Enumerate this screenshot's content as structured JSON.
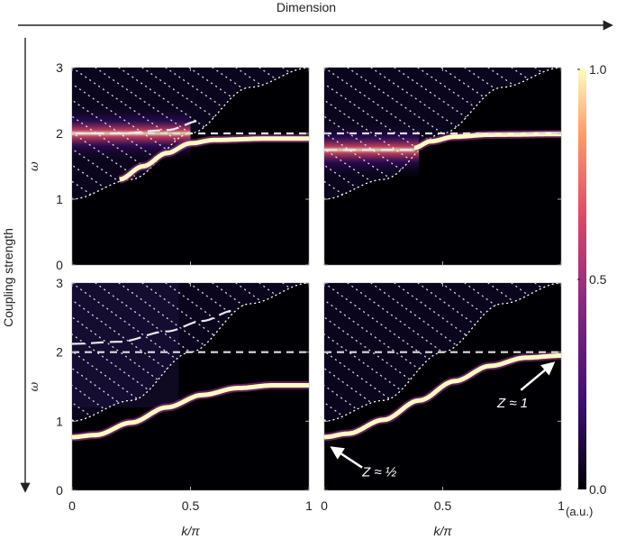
{
  "chart_data": {
    "type": "heatmap",
    "title": "",
    "top_arrow_label": "Dimension",
    "left_arrow_label": "Coupling strength",
    "xlabel": "k/π",
    "ylabel": "ω",
    "xlim": [
      0,
      1
    ],
    "ylim": [
      0,
      3
    ],
    "x_ticks": [
      "0",
      "0.5",
      "1"
    ],
    "y_ticks": [
      "0",
      "1",
      "2",
      "3"
    ],
    "colorbar": {
      "ticks": [
        "0.0",
        "0.5",
        "1.0"
      ],
      "range": [
        0,
        1
      ],
      "unit_label": "(a.u.)",
      "colormap": [
        "#000004",
        "#3b0f70",
        "#8c2981",
        "#de4968",
        "#fe9f6d",
        "#fcfdbf"
      ]
    },
    "continuum_lower_edge": {
      "k": [
        0,
        0.25,
        0.5,
        0.75,
        1
      ],
      "omega": [
        1.0,
        1.3,
        2.0,
        2.7,
        3.0
      ]
    },
    "panels": [
      {
        "id": "top-left",
        "bare_level": 2.0,
        "dressed_dashed": {
          "k": [
            0,
            0.2,
            0.4,
            0.55
          ],
          "omega": [
            2.0,
            2.0,
            2.05,
            2.2
          ]
        },
        "bound_state": {
          "k": [
            0.2,
            0.3,
            0.4,
            0.5,
            0.6,
            0.8,
            1.0
          ],
          "omega": [
            1.3,
            1.5,
            1.7,
            1.85,
            1.9,
            1.92,
            1.92
          ]
        },
        "broadened_band": {
          "omega": 2.0,
          "k_end": 0.5
        }
      },
      {
        "id": "top-right",
        "bare_level": 2.0,
        "dressed_dashed": {
          "k": [
            0,
            0.38
          ],
          "omega": [
            1.75,
            1.75
          ]
        },
        "bound_state": {
          "k": [
            0.38,
            0.45,
            0.55,
            0.7,
            1.0
          ],
          "omega": [
            1.78,
            1.88,
            1.95,
            1.98,
            1.99
          ]
        },
        "broadened_band": {
          "omega": 1.75,
          "k_end": 0.4
        }
      },
      {
        "id": "bottom-left",
        "bare_level": 2.0,
        "dressed_dashed": {
          "k": [
            0,
            0.2,
            0.4,
            0.55,
            0.68
          ],
          "omega": [
            2.12,
            2.15,
            2.3,
            2.45,
            2.6
          ]
        },
        "bound_state": {
          "k": [
            0,
            0.1,
            0.25,
            0.4,
            0.55,
            0.7,
            0.85,
            1.0
          ],
          "omega": [
            0.77,
            0.8,
            0.98,
            1.2,
            1.38,
            1.48,
            1.52,
            1.52
          ]
        },
        "broadened_band": null
      },
      {
        "id": "bottom-right",
        "bare_level": 2.0,
        "dressed_dashed": null,
        "bound_state": {
          "k": [
            0,
            0.1,
            0.25,
            0.4,
            0.55,
            0.7,
            0.85,
            1.0
          ],
          "omega": [
            0.77,
            0.82,
            1.02,
            1.3,
            1.58,
            1.8,
            1.92,
            1.95
          ]
        },
        "broadened_band": null,
        "annotations": [
          {
            "text": "Z ≈ 1",
            "k": 0.92,
            "omega": 1.9
          },
          {
            "text": "Z ≈ ½",
            "k": 0.05,
            "omega": 0.7
          }
        ]
      }
    ]
  }
}
